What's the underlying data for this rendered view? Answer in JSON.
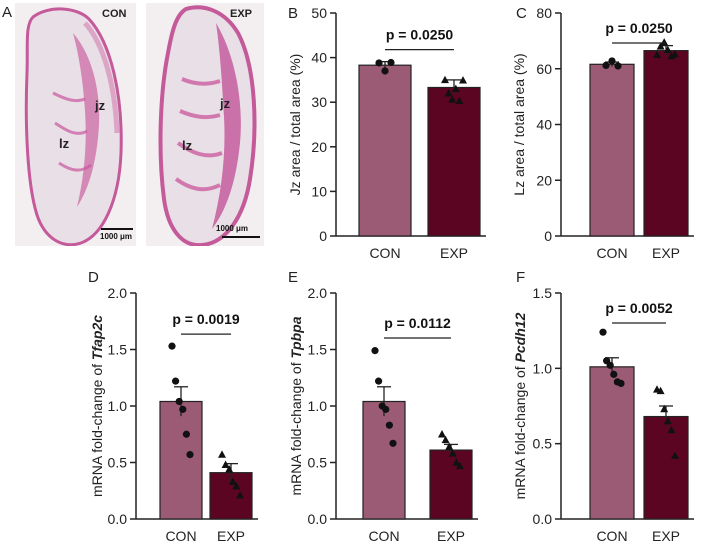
{
  "colors": {
    "con": "#9b5b74",
    "exp": "#5c0523"
  },
  "micrographs": {
    "panel_letter": "A",
    "con": {
      "label": "CON",
      "scale": "1000 μm",
      "jz": "jz",
      "lz": "lz"
    },
    "exp": {
      "label": "EXP",
      "scale": "1000 μm",
      "jz": "jz",
      "lz": "lz"
    }
  },
  "chart_data": [
    {
      "panel": "B",
      "type": "bar",
      "ylabel": "Jz area / total area (%)",
      "ylabel_gene": "",
      "ylim": [
        0,
        50
      ],
      "yticks": [
        "0",
        "10",
        "20",
        "30",
        "40",
        "50"
      ],
      "ytick_values": [
        0,
        10,
        20,
        30,
        40,
        50
      ],
      "categories": [
        "CON",
        "EXP"
      ],
      "values": [
        38.3,
        33.3
      ],
      "sem": [
        0.8,
        1.7
      ],
      "points": {
        "CON": [
          38.8,
          37.0,
          38.9
        ],
        "EXP": [
          35.0,
          32.0,
          30.6,
          33.0,
          30.3,
          34.9
        ]
      },
      "pvalue": "p = 0.0250"
    },
    {
      "panel": "C",
      "type": "bar",
      "ylabel": "Lz area / total area (%)",
      "ylabel_gene": "",
      "ylim": [
        0,
        80
      ],
      "yticks": [
        "0",
        "20",
        "40",
        "60",
        "80"
      ],
      "ytick_values": [
        0,
        20,
        40,
        60,
        80
      ],
      "categories": [
        "CON",
        "EXP"
      ],
      "values": [
        61.6,
        66.5
      ],
      "sem": [
        0.8,
        1.8
      ],
      "points": {
        "CON": [
          61.2,
          62.8,
          61.0
        ],
        "EXP": [
          65.0,
          68.0,
          69.5,
          66.8,
          64.5,
          65.2
        ]
      },
      "pvalue": "p = 0.0250"
    },
    {
      "panel": "D",
      "type": "bar",
      "ylabel": "mRNA fold-change of ",
      "ylabel_gene": "Tfap2c",
      "ylim": [
        0,
        2.0
      ],
      "yticks": [
        "0.0",
        "0.5",
        "1.0",
        "1.5",
        "2.0"
      ],
      "ytick_values": [
        0,
        0.5,
        1.0,
        1.5,
        2.0
      ],
      "categories": [
        "CON",
        "EXP"
      ],
      "values": [
        1.04,
        0.41
      ],
      "sem": [
        0.13,
        0.08
      ],
      "points": {
        "CON": [
          1.53,
          1.22,
          1.04,
          0.97,
          0.75,
          0.57
        ],
        "EXP": [
          0.57,
          0.48,
          0.44,
          0.33,
          0.29,
          0.21
        ]
      },
      "pvalue": "p = 0.0019"
    },
    {
      "panel": "E",
      "type": "bar",
      "ylabel": "mRNA fold-change of ",
      "ylabel_gene": "Tpbpa",
      "ylim": [
        0,
        2.0
      ],
      "yticks": [
        "0.0",
        "0.5",
        "1.0",
        "1.5",
        "2.0"
      ],
      "ytick_values": [
        0,
        0.5,
        1.0,
        1.5,
        2.0
      ],
      "categories": [
        "CON",
        "EXP"
      ],
      "values": [
        1.04,
        0.61
      ],
      "sem": [
        0.13,
        0.05
      ],
      "points": {
        "CON": [
          1.49,
          1.22,
          1.0,
          0.97,
          0.83,
          0.67
        ],
        "EXP": [
          0.75,
          0.7,
          0.64,
          0.58,
          0.5,
          0.47
        ]
      },
      "pvalue": "p = 0.0112"
    },
    {
      "panel": "F",
      "type": "bar",
      "ylabel": "mRNA fold-change of ",
      "ylabel_gene": "Pcdh12",
      "ylim": [
        0,
        1.5
      ],
      "yticks": [
        "0.0",
        "0.5",
        "1.0",
        "1.5"
      ],
      "ytick_values": [
        0,
        0.5,
        1.0,
        1.5
      ],
      "categories": [
        "CON",
        "EXP"
      ],
      "values": [
        1.01,
        0.68
      ],
      "sem": [
        0.06,
        0.07
      ],
      "points": {
        "CON": [
          1.24,
          1.05,
          1.02,
          0.96,
          0.91,
          0.9
        ],
        "EXP": [
          0.86,
          0.85,
          0.73,
          0.65,
          0.59,
          0.42
        ]
      },
      "pvalue": "p = 0.0052"
    }
  ]
}
